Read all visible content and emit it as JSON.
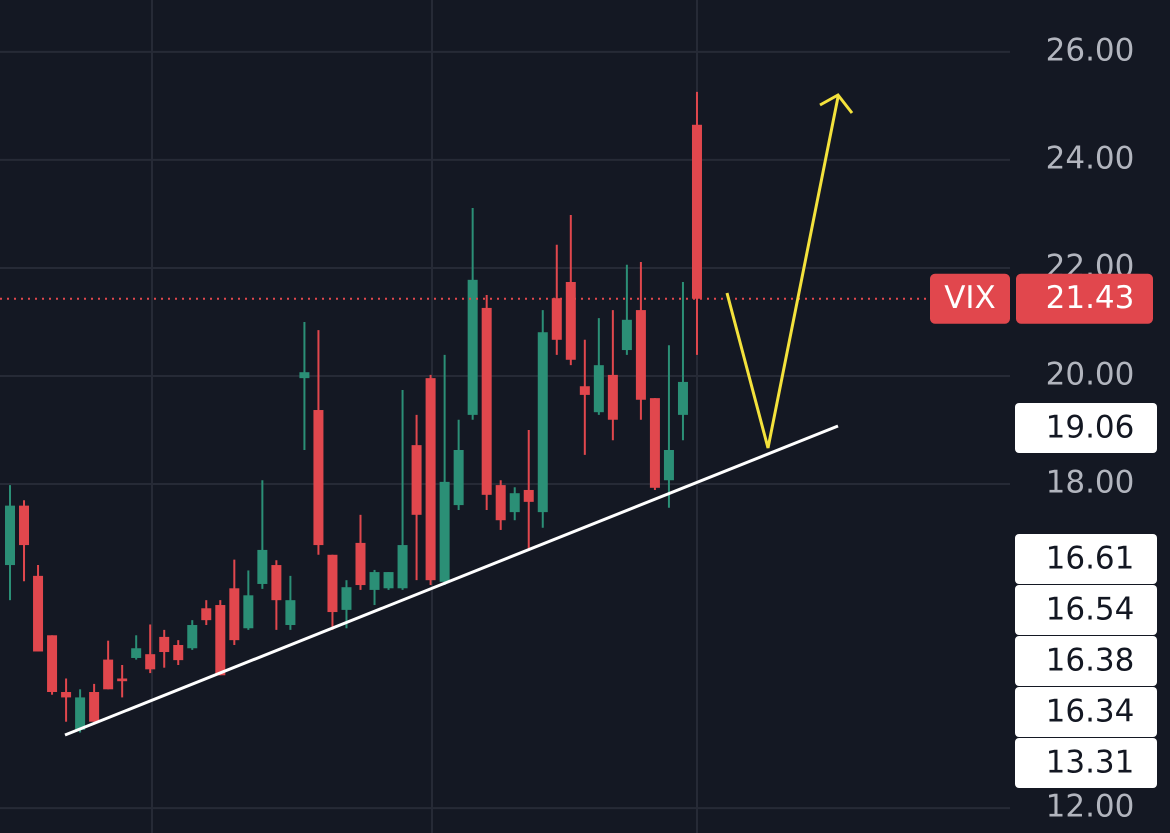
{
  "chart_data": {
    "type": "candlestick",
    "symbol": "VIX",
    "open": [
      16.5,
      17.6,
      16.3,
      15.2,
      14.15,
      13.45,
      14.15,
      14.75,
      14.4,
      14.78,
      14.85,
      15.17,
      15.02,
      14.96,
      15.7,
      15.76,
      16.07,
      15.33,
      16.15,
      16.5,
      15.39,
      19.96,
      19.37,
      16.69,
      15.67,
      16.91,
      16.04,
      16.07,
      16.07,
      18.72,
      19.96,
      16.19,
      17.61,
      19.28,
      21.26,
      17.98,
      17.48,
      17.89,
      17.48,
      21.44,
      21.74,
      19.81,
      19.33,
      20.02,
      20.48,
      21.22,
      19.59,
      18.07,
      19.28,
      24.65
    ],
    "high": [
      17.98,
      17.7,
      16.5,
      15.2,
      14.4,
      14.2,
      14.3,
      15.1,
      14.65,
      15.2,
      15.4,
      15.3,
      15.11,
      15.48,
      15.85,
      15.85,
      16.6,
      16.4,
      18.07,
      16.59,
      16.3,
      21.0,
      20.85,
      16.69,
      16.22,
      17.43,
      16.41,
      16.37,
      19.74,
      19.28,
      20.02,
      20.39,
      19.19,
      23.11,
      21.5,
      18.07,
      17.94,
      19.0,
      21.22,
      22.43,
      22.98,
      20.67,
      21.07,
      21.22,
      22.06,
      22.11,
      19.59,
      20.57,
      21.74,
      25.26
    ],
    "low": [
      15.85,
      16.2,
      14.9,
      14.1,
      13.6,
      13.4,
      13.6,
      14.2,
      14.05,
      14.75,
      14.5,
      14.6,
      14.65,
      14.93,
      15.39,
      14.46,
      15.02,
      15.3,
      16.06,
      15.3,
      15.3,
      18.63,
      16.69,
      15.3,
      15.33,
      16.04,
      15.76,
      16.04,
      16.04,
      16.22,
      16.13,
      16.13,
      17.52,
      19.19,
      17.52,
      17.15,
      17.33,
      16.81,
      17.19,
      20.39,
      20.2,
      18.54,
      19.28,
      18.81,
      20.39,
      19.19,
      17.89,
      17.56,
      18.81,
      20.39
    ],
    "close": [
      17.6,
      16.87,
      14.9,
      14.15,
      14.05,
      14.05,
      13.6,
      14.2,
      14.35,
      14.96,
      14.57,
      14.89,
      14.74,
      15.39,
      15.48,
      14.46,
      15.11,
      15.94,
      16.78,
      15.85,
      15.85,
      20.07,
      16.87,
      15.63,
      16.09,
      16.13,
      16.37,
      16.37,
      16.87,
      17.43,
      16.22,
      18.04,
      18.63,
      21.78,
      17.8,
      17.33,
      17.83,
      17.67,
      20.81,
      20.67,
      20.3,
      19.65,
      20.2,
      19.19,
      21.04,
      19.56,
      17.93,
      18.63,
      19.89,
      21.43
    ],
    "up_color": "#2b8f76",
    "down_color": "#e1474d",
    "last_value": 21.43,
    "last_value_label": "21.43",
    "price_labels": {
      "values": [
        19.06,
        16.61,
        16.54,
        16.38,
        16.34,
        13.31
      ],
      "value_labels": [
        "19.06",
        "16.61",
        "16.54",
        "16.38",
        "16.34",
        "13.31"
      ]
    },
    "ylim": [
      11.54,
      26.96
    ],
    "yticks": [
      {
        "value": 12,
        "label": "12.00"
      },
      {
        "value": 18,
        "label": "18.00"
      },
      {
        "value": 20,
        "label": "20.00"
      },
      {
        "value": 22,
        "label": "22.00"
      },
      {
        "value": 24,
        "label": "24.00"
      },
      {
        "value": 26,
        "label": "26.00"
      }
    ],
    "grid": true
  }
}
